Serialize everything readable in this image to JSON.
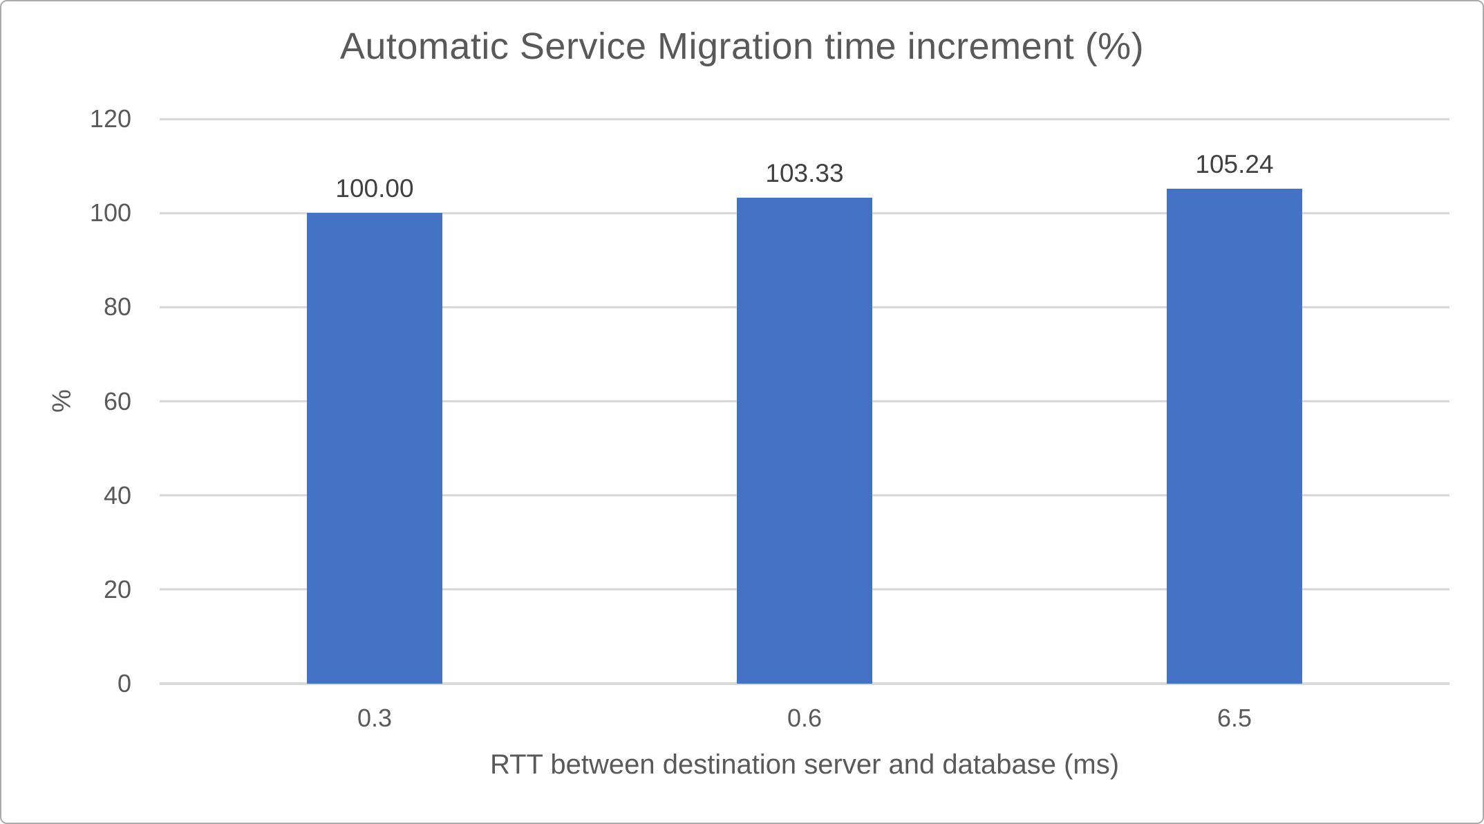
{
  "chart_data": {
    "type": "bar",
    "title": "Automatic Service Migration time increment (%)",
    "xlabel": "RTT between destination server and database (ms)",
    "ylabel": "%",
    "categories": [
      "0.3",
      "0.6",
      "6.5"
    ],
    "values": [
      100.0,
      103.33,
      105.24
    ],
    "data_labels": [
      "100.00",
      "103.33",
      "105.24"
    ],
    "ylim": [
      0,
      120
    ],
    "yticks": [
      0,
      20,
      40,
      60,
      80,
      100,
      120
    ],
    "grid": "horizontal",
    "legend_position": "none",
    "bar_color": "#4472c4",
    "gridline_color": "#d9d9d9",
    "text_color": "#595959",
    "data_label_color": "#404040",
    "frame_border_color": "#ababab",
    "background_color": "#ffffff"
  }
}
